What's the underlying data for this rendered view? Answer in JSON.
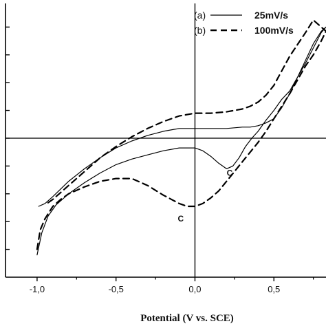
{
  "chart_data": {
    "type": "line",
    "title": "",
    "xlabel": "Potential (V vs. SCE)",
    "ylabel": "",
    "xlim": [
      -1.2,
      0.83
    ],
    "ylim": [
      -5.0,
      4.85
    ],
    "x_ticks": [
      -1.0,
      -0.5,
      0.0,
      0.5
    ],
    "x_tick_labels": [
      "-1,0",
      "-0,5",
      "0,0",
      "0,5"
    ],
    "y_ticks": [
      -4,
      -3,
      -2,
      -1,
      0,
      1,
      2,
      3,
      4
    ],
    "grid": false,
    "reference_lines": {
      "x": 0.0,
      "y": 0.0
    },
    "legend": {
      "placement": "top-right",
      "entries": [
        {
          "tag": "(a)",
          "label": "25mV/s",
          "style": "solid"
        },
        {
          "tag": "(b)",
          "label": "100mV/s",
          "style": "dashed"
        }
      ]
    },
    "annotations": [
      {
        "text": "C",
        "x": 0.22,
        "y": -1.35
      },
      {
        "text": "C",
        "x": -0.09,
        "y": -3.0
      }
    ],
    "series": [
      {
        "style": "solid",
        "x": [
          -1.0,
          -0.97,
          -0.93,
          -0.88,
          -0.8,
          -0.7,
          -0.6,
          -0.5,
          -0.4,
          -0.3,
          -0.2,
          -0.1,
          0.0,
          0.05,
          0.1,
          0.15,
          0.2,
          0.24,
          0.28,
          0.32,
          0.36,
          0.4,
          0.45,
          0.5,
          0.55,
          0.6,
          0.65,
          0.7,
          0.75,
          0.8,
          0.83,
          0.8,
          0.75,
          0.7,
          0.65,
          0.6,
          0.55,
          0.5,
          0.45,
          0.4,
          0.35,
          0.3,
          0.2,
          0.1,
          0.0,
          -0.1,
          -0.2,
          -0.3,
          -0.4,
          -0.5,
          -0.6,
          -0.7,
          -0.8,
          -0.9,
          -0.95,
          -0.99
        ],
        "y": [
          -4.2,
          -3.4,
          -2.8,
          -2.4,
          -2.0,
          -1.6,
          -1.25,
          -0.95,
          -0.75,
          -0.6,
          -0.45,
          -0.35,
          -0.35,
          -0.45,
          -0.65,
          -0.9,
          -1.1,
          -1.0,
          -0.7,
          -0.3,
          0.0,
          0.25,
          0.65,
          1.0,
          1.4,
          1.7,
          2.2,
          2.7,
          3.25,
          3.8,
          4.0,
          3.85,
          3.4,
          2.8,
          2.2,
          1.6,
          1.1,
          0.7,
          0.55,
          0.45,
          0.4,
          0.4,
          0.35,
          0.35,
          0.35,
          0.35,
          0.25,
          0.1,
          -0.1,
          -0.35,
          -0.7,
          -1.1,
          -1.55,
          -2.1,
          -2.35,
          -2.45
        ]
      },
      {
        "style": "dashed",
        "x": [
          -1.0,
          -0.98,
          -0.95,
          -0.9,
          -0.85,
          -0.8,
          -0.7,
          -0.6,
          -0.5,
          -0.4,
          -0.3,
          -0.2,
          -0.1,
          -0.05,
          0.0,
          0.05,
          0.1,
          0.15,
          0.2,
          0.25,
          0.3,
          0.35,
          0.4,
          0.45,
          0.5,
          0.55,
          0.6,
          0.65,
          0.7,
          0.75,
          0.8,
          0.83,
          0.8,
          0.75,
          0.7,
          0.6,
          0.5,
          0.45,
          0.4,
          0.35,
          0.3,
          0.2,
          0.1,
          0.0,
          -0.1,
          -0.2,
          -0.3,
          -0.4,
          -0.5,
          -0.6,
          -0.7,
          -0.8,
          -0.9,
          -0.95
        ],
        "y": [
          -4.0,
          -3.3,
          -2.9,
          -2.45,
          -2.2,
          -2.0,
          -1.75,
          -1.55,
          -1.45,
          -1.45,
          -1.7,
          -2.05,
          -2.35,
          -2.45,
          -2.45,
          -2.35,
          -2.15,
          -1.9,
          -1.55,
          -1.2,
          -0.85,
          -0.5,
          -0.15,
          0.25,
          0.7,
          1.15,
          1.6,
          2.1,
          2.6,
          3.0,
          3.5,
          3.85,
          4.0,
          4.25,
          3.8,
          2.95,
          1.9,
          1.55,
          1.3,
          1.15,
          1.05,
          0.95,
          0.9,
          0.9,
          0.8,
          0.6,
          0.35,
          0.05,
          -0.3,
          -0.7,
          -1.2,
          -1.7,
          -2.2,
          -2.4
        ]
      }
    ]
  }
}
